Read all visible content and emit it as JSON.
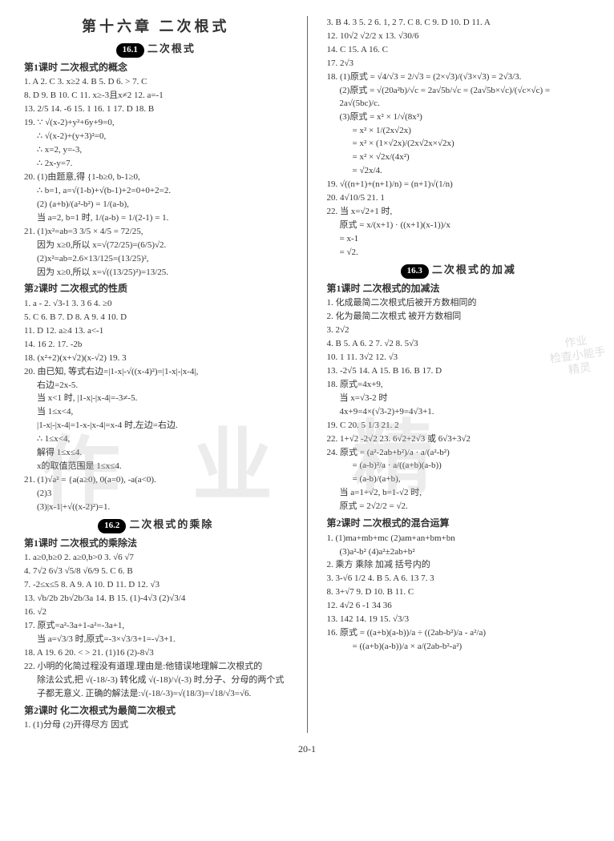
{
  "chapterTitle": "第十六章 二次根式",
  "pageFooter": "20-1",
  "leftCol": {
    "sec161": {
      "badge": "16.1",
      "title": "二次根式"
    },
    "lesson1Title": "第1课时 二次根式的概念",
    "l1": "1. A  2. C  3. x≥2  4. B  5. D  6. >  7. C",
    "l2": "8. D  9. B  10. C  11. x≥-3且x≠2  12. a=-1",
    "l3": "13. 2/5  14. -6  15. 1  16. 1  17. D  18. B",
    "l4": "19. ∵ √(x-2)+y²+6y+9=0,",
    "l5": "∴ √(x-2)+(y+3)²=0,",
    "l6": "∴ x=2, y=-3,",
    "l7": "∴ 2x-y=7.",
    "l8": "20. (1)由题意,得 {1-b≥0, b-1≥0,",
    "l9": "∴ b=1, a=√(1-b)+√(b-1)+2=0+0+2=2.",
    "l10": "(2) (a+b)/(a²-b²) = 1/(a-b),",
    "l11": "当 a=2, b=1 时, 1/(a-b) = 1/(2-1) = 1.",
    "l12": "21. (1)x²=ab=3 3/5 × 4/5 = 72/25,",
    "l13": "因为 x≥0,所以 x=√(72/25)=(6/5)√2.",
    "l14": "(2)x²=ab=2.6×13/125=(13/25)²,",
    "l15": "因为 x≥0,所以 x=√((13/25)²)=13/25.",
    "lesson2Title": "第2课时 二次根式的性质",
    "p2l1": "1. a  -  2. √3-1  3. 3  6  4. ≥0",
    "p2l2": "5. C  6. B  7. D  8. A  9. 4  10. D",
    "p2l3": "11. D  12. a≥4  13. a<-1",
    "p2l4": "14. 16  2. 17. -2b",
    "p2l5": "18. (x²+2)(x+√2)(x-√2)  19. 3",
    "p2l6": "20. 由已知, 等式右边=|1-x|-√((x-4)²)=|1-x|-|x-4|,",
    "p2l7": "右边=2x-5.",
    "p2l8": "当 x<1 时, |1-x|-|x-4|=-3≠-5.",
    "p2l9": "当 1≤x<4,",
    "p2l10": "|1-x|-|x-4|=1-x-|x-4|=x-4 时,左边=右边.",
    "p2l11": "∴ 1≤x<4,",
    "p2l12": "解得 1≤x≤4.",
    "p2l13": "x的取值范围是 1≤x≤4.",
    "p2l14": "21. (1)√a² = {a(a≥0), 0(a=0), -a(a<0).",
    "p2l15": "(2)3",
    "p2l16": "(3)|x-1|+√((x-2)²)=1.",
    "sec162": {
      "badge": "16.2",
      "title": "二次根式的乘除"
    },
    "lesson162_1": "第1课时 二次根式的乘除法",
    "m1": "1. a≥0,b≥0  2. a≥0,b>0  3. √6  √7",
    "m2": "4. 7√2  6√3  √5/8  √6/9  5. C  6. B",
    "m3": "7. -2≤x≤5  8. A  9. A  10. D  11. D  12. √3",
    "m4": "13. √b/2b  2b√2b/3a  14. B  15. (1)-4√3  (2)√3/4",
    "m5": "16. √2",
    "m6": "17. 原式=a²-3a+1-a²=-3a+1,",
    "m7": "当 a=√3/3 时,原式=-3×√3/3+1=-√3+1.",
    "m8": "18. A  19. 6  20. < >  21. (1)16 (2)-8√3",
    "m9": "22. 小明的化简过程没有道理.理由是:他错误地理解二次根式的",
    "m10": "除法公式,把 √(-18/-3) 转化成 √(-18)/√(-3) 时,分子、分母的两个式",
    "m11": "子都无意义. 正确的解法是:√(-18/-3)=√(18/3)=√18/√3=√6.",
    "lesson162_2": "第2课时 化二次根式为最简二次根式",
    "n1": "1. (1)分母  (2)开得尽方  因式"
  },
  "rightCol": {
    "r1": "3. B  4. 3  5. 2  6. 1, 2  7. C  8. C  9. D  10. D  11. A",
    "r2": "12. 10√2  √2/2 x  13. √30/6",
    "r3": "14. C  15. A  16. C",
    "r4": "17. 2√3",
    "r5": "18. (1)原式 = √4/√3 = 2/√3 = (2×√3)/(√3×√3) = 2√3/3.",
    "r6": "(2)原式 = √(20a²b)/√c = 2a√5b/√c = (2a√5b×√c)/(√c×√c) = 2a√(5bc)/c.",
    "r7": "(3)原式 = x² × 1/√(8x³)",
    "r8": "= x² × 1/(2x√2x)",
    "r9": "= x² × (1×√2x)/(2x√2x×√2x)",
    "r10": "= x² × √2x/(4x²)",
    "r11": "= √2x/4.",
    "r12": "19. √((n+1)+(n+1)/n) = (n+1)√(1/n)",
    "r13": "20. 4√10/5  21. 1",
    "r14": "22. 当 x=√2+1 时,",
    "r15": "原式 = x/(x+1) · ((x+1)(x-1))/x",
    "r16": "= x-1",
    "r17": "= √2.",
    "sec163": {
      "badge": "16.3",
      "title": "二次根式的加减"
    },
    "lesson163_1": "第1课时 二次根式的加减法",
    "s1": "1. 化成最简二次根式后被开方数相同的",
    "s2": "2. 化为最简二次根式  被开方数相同",
    "s3": "3. 2√2",
    "s4": "4. B  5. A  6. 2  7. √2  8. 5√3",
    "s5": "10. 1  11. 3√2  12. √3",
    "s6": "13. -2√5  14. A  15. B  16. B  17. D",
    "s7": "18. 原式=4x+9,",
    "s8": "当 x=√3-2 时",
    "s9": "4x+9=4×(√3-2)+9=4√3+1.",
    "s10": "19. C  20. 5 1/3  21. 2",
    "s11": "22. 1+√2  -2√2  23. 6√2+2√3 或 6√3+3√2",
    "s12": "24. 原式 = (a²-2ab+b²)/a · a/(a²-b²)",
    "s13": "= (a-b)²/a · a/((a+b)(a-b))",
    "s14": "= (a-b)/(a+b),",
    "s15": "当 a=1+√2, b=1-√2 时,",
    "s16": "原式 = 2√2/2 = √2.",
    "lesson163_2": "第2课时 二次根式的混合运算",
    "t1": "1. (1)ma+mb+mc  (2)am+an+bm+bn",
    "t2": "(3)a²-b²  (4)a²±2ab+b²",
    "t3": "2. 乘方  乘除  加减  括号内的",
    "t4": "3. 3-√6  1/2  4. B  5. A  6. 13  7. 3",
    "t5": "8. 3+√7  9. D  10. B  11. C",
    "t6": "12. 4√2  6  -1  34  36",
    "t7": "13. 142  14. 19  15. √3/3",
    "t8": "16. 原式 = ((a+b)(a-b))/a ÷ ((2ab-b²)/a - a²/a)",
    "t9": "= ((a+b)(a-b))/a × a/(2ab-b²-a²)"
  }
}
